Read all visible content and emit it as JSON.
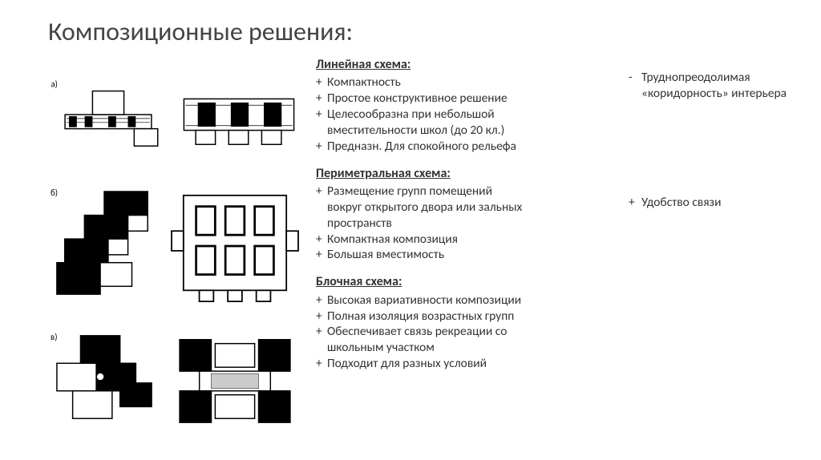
{
  "title": "Композиционные решения:",
  "colors": {
    "bg": "#ffffff",
    "text": "#333333",
    "title": "#444444",
    "figure_line": "#000000"
  },
  "typography": {
    "title_fontsize": 32,
    "body_fontsize": 15.5,
    "heading_fontsize": 16,
    "font_family": "Calibri"
  },
  "schemes": [
    {
      "heading": "Линейная схема:",
      "items": [
        "+ Компактность",
        "+ Простое конструктивное решение",
        "+ Целесообразна при небольшой\n   вместительности школ (до 20 кл.)",
        "+ Предназн. Для спокойного рельефа"
      ],
      "side": {
        "bullet": "-",
        "text": "Труднопреодолимая «коридорность» интерьера"
      }
    },
    {
      "heading": "Периметральная схема:",
      "items": [
        "+ Размещение групп помещений\n   вокруг открытого двора или зальных\n   пространств",
        "+ Компактная композиция",
        "+ Большая вместимость"
      ],
      "side": {
        "bullet": "+",
        "text": "Удобство связи"
      }
    },
    {
      "heading": "Блочная схема:",
      "items": [
        "+ Высокая вариативности композиции",
        "+ Полная изоляция возрастных групп",
        "+ Обеспечивает связь рекреации со\n   школьным участком",
        "+ Подходит для разных условий"
      ]
    }
  ],
  "figure_row_labels": [
    "а)",
    "б)",
    "в)"
  ]
}
